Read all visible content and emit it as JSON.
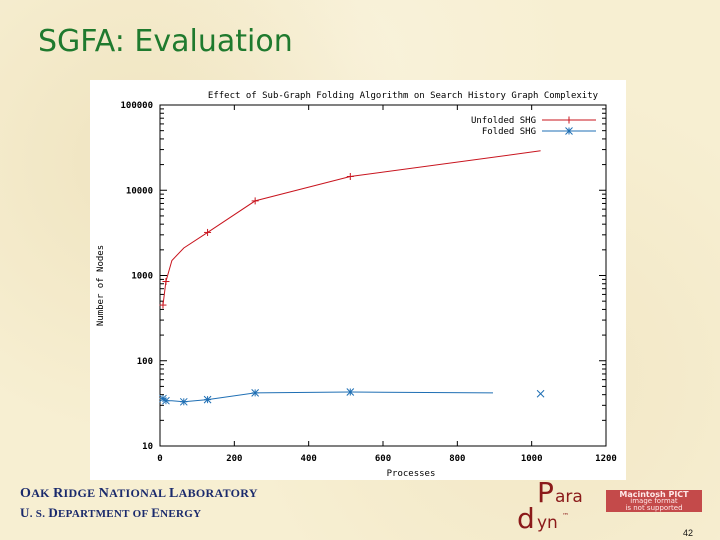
{
  "slide": {
    "title": "SGFA: Evaluation",
    "footer_lab": {
      "o": "O",
      "ak": "AK ",
      "r": "R",
      "idge": "IDGE ",
      "n": "N",
      "ational": "ATIONAL ",
      "l": "L",
      "aboratory": "ABORATORY"
    },
    "footer_doe": {
      "u": "U",
      "s": ". S. ",
      "d": "D",
      "epartment": "EPARTMENT OF ",
      "e": "E",
      "nergy": "NERGY"
    },
    "page_number": "42",
    "logo": {
      "p": "P",
      "ara": "ara",
      "d": "d",
      "yn": "yn",
      "tm": "™"
    },
    "pict_placeholder": {
      "line1": "Macintosh PICT",
      "line2": "image format",
      "line3": "is not supported"
    },
    "colors": {
      "title": "#1f7a2e",
      "footer": "#1a2a6c",
      "logo": "#8b1a1a",
      "unfolded": "#c8141e",
      "folded": "#1f6fb4"
    }
  },
  "chart_data": {
    "type": "line",
    "title": "Effect of Sub-Graph Folding Algorithm on Search History Graph Complexity",
    "xlabel": "Processes",
    "ylabel": "Number of Nodes",
    "xlim": [
      0,
      1200
    ],
    "ylim": [
      10,
      100000
    ],
    "yscale": "log",
    "grid": false,
    "legend_position": "top-right",
    "x_ticks": [
      "0",
      "200",
      "400",
      "600",
      "800",
      "1000",
      "1200"
    ],
    "y_ticks": [
      "10",
      "100",
      "1000",
      "10000",
      "100000"
    ],
    "series": [
      {
        "name": "Unfolded SHG",
        "marker": "+",
        "color": "#c8141e",
        "x": [
          8,
          16,
          32,
          64,
          128,
          256,
          512,
          1024
        ],
        "y": [
          450,
          850,
          1500,
          2100,
          3200,
          7500,
          14500,
          29000
        ],
        "markers_at": [
          8,
          16,
          128,
          256,
          512
        ]
      },
      {
        "name": "Folded SHG",
        "marker": "*",
        "color": "#1f6fb4",
        "x": [
          8,
          16,
          32,
          64,
          128,
          256,
          512,
          896
        ],
        "y": [
          36,
          34,
          34,
          33,
          35,
          42,
          43,
          42
        ],
        "markers_at": [
          8,
          16,
          64,
          128,
          256,
          512
        ]
      },
      {
        "name": "",
        "marker": "x",
        "color": "#1f6fb4",
        "x": [
          1024
        ],
        "y": [
          41
        ],
        "markers_at": [
          1024
        ]
      }
    ]
  }
}
